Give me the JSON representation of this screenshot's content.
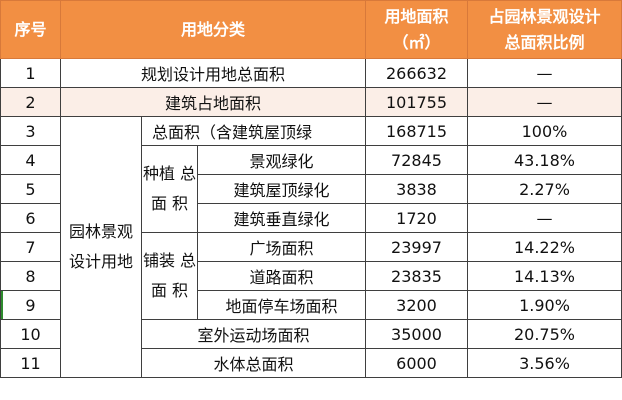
{
  "headers": {
    "index": "序号",
    "category": "用地分类",
    "area": "用地面积\n（㎡）",
    "ratio": "占园林景观设计\n总面积比例"
  },
  "rows": [
    {
      "index": "1",
      "name": "规划设计用地总面积",
      "area": "266632",
      "ratio": "—"
    },
    {
      "index": "2",
      "name": "建筑占地面积",
      "area": "101755",
      "ratio": "—"
    },
    {
      "index": "3",
      "name": "总面积（含建筑屋顶绿",
      "area": "168715",
      "ratio": "100%"
    },
    {
      "index": "4",
      "name": "景观绿化",
      "area": "72845",
      "ratio": "43.18%"
    },
    {
      "index": "5",
      "name": "建筑屋顶绿化",
      "area": "3838",
      "ratio": "2.27%"
    },
    {
      "index": "6",
      "name": "建筑垂直绿化",
      "area": "1720",
      "ratio": "—"
    },
    {
      "index": "7",
      "name": "广场面积",
      "area": "23997",
      "ratio": "14.22%"
    },
    {
      "index": "8",
      "name": "道路面积",
      "area": "23835",
      "ratio": "14.13%"
    },
    {
      "index": "9",
      "name": "地面停车场面积",
      "area": "3200",
      "ratio": "1.90%"
    },
    {
      "index": "10",
      "name": "室外运动场面积",
      "area": "35000",
      "ratio": "20.75%"
    },
    {
      "index": "11",
      "name": "水体总面积",
      "area": "6000",
      "ratio": "3.56%"
    }
  ],
  "groups": {
    "landscape": "园林景观\n设计用地",
    "planting": "种植\n总面\n积",
    "paving": "铺装\n总面\n积"
  }
}
